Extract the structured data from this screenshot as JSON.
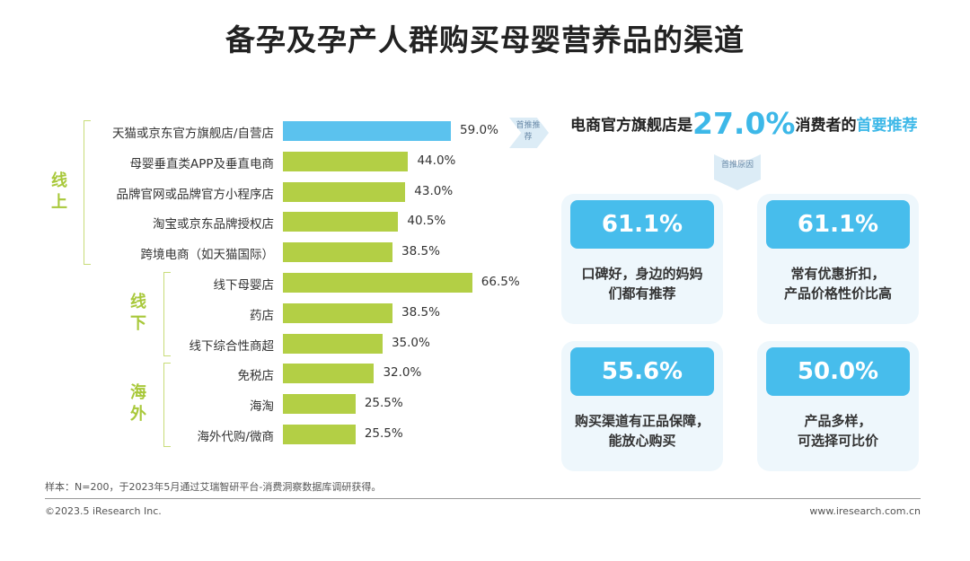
{
  "title": "备孕及孕产人群购买母婴营养品的渠道",
  "chart_data": {
    "type": "bar",
    "orientation": "horizontal",
    "groups": [
      {
        "label": "线上",
        "categories": [
          "天猫或京东官方旗舰店/自营店",
          "母婴垂直类APP及垂直电商",
          "品牌官网或品牌官方小程序店",
          "淘宝或京东品牌授权店",
          "跨境电商（如天猫国际）"
        ],
        "values": [
          59.0,
          44.0,
          43.0,
          40.5,
          38.5
        ]
      },
      {
        "label": "线下",
        "categories": [
          "线下母婴店",
          "药店",
          "线下综合性商超"
        ],
        "values": [
          66.5,
          38.5,
          35.0
        ]
      },
      {
        "label": "海外",
        "categories": [
          "免税店",
          "海淘",
          "海外代购/微商"
        ],
        "values": [
          32.0,
          25.5,
          25.5
        ]
      }
    ],
    "value_labels": [
      "59.0%",
      "44.0%",
      "43.0%",
      "40.5%",
      "38.5%",
      "66.5%",
      "38.5%",
      "35.0%",
      "32.0%",
      "25.5%",
      "25.5%"
    ],
    "highlight_index": 0,
    "colors": {
      "highlight": "#5bc2ee",
      "default": "#b3cf45"
    }
  },
  "callout": {
    "arrow_label": "首推推荐",
    "prefix": "电商官方旗舰店是",
    "big_value": "27.0%",
    "middle": "消费者的",
    "accent": "首要推荐",
    "reason_label": "首推原因"
  },
  "reasons": [
    {
      "value": "61.1%",
      "line1": "口碑好，身边的妈妈",
      "line2": "们都有推荐"
    },
    {
      "value": "61.1%",
      "line1": "常有优惠折扣，",
      "line2": "产品价格性价比高"
    },
    {
      "value": "55.6%",
      "line1": "购买渠道有正品保障，",
      "line2": "能放心购买"
    },
    {
      "value": "50.0%",
      "line1": "产品多样，",
      "line2": "可选择可比价"
    }
  ],
  "footer": {
    "sample": "样本：N=200，于2023年5月通过艾瑞智研平台-消费洞察数据库调研获得。",
    "copyright": "©2023.5 iResearch Inc.",
    "website": "www.iresearch.com.cn"
  }
}
